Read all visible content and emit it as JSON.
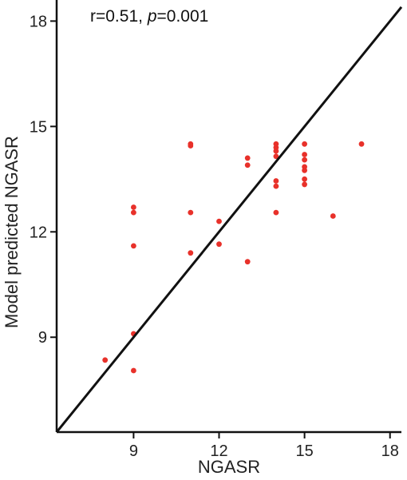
{
  "chart_data": {
    "type": "scatter",
    "title": "",
    "xlabel": "NGASR",
    "ylabel": "Model predicted NGASR",
    "xlim": [
      6.3,
      18.4
    ],
    "ylim": [
      6.3,
      18.6
    ],
    "xticks": [
      9,
      12,
      15,
      18
    ],
    "yticks": [
      9,
      12,
      15,
      18
    ],
    "grid": false,
    "annotation": {
      "r_label": "r=0.51, ",
      "p_symbol": "p",
      "p_value": "=0.001"
    },
    "identity_line": {
      "from": [
        6.3,
        6.3
      ],
      "to": [
        18.4,
        18.4
      ]
    },
    "point_color": "#e8312a",
    "line_color": "#111111",
    "points": [
      {
        "x": 8,
        "y": 8.35
      },
      {
        "x": 9,
        "y": 8.05
      },
      {
        "x": 9,
        "y": 9.1
      },
      {
        "x": 9,
        "y": 11.6
      },
      {
        "x": 9,
        "y": 12.55
      },
      {
        "x": 9,
        "y": 12.7
      },
      {
        "x": 11,
        "y": 11.4
      },
      {
        "x": 11,
        "y": 12.55
      },
      {
        "x": 11,
        "y": 14.45
      },
      {
        "x": 11,
        "y": 14.5
      },
      {
        "x": 12,
        "y": 11.65
      },
      {
        "x": 12,
        "y": 12.3
      },
      {
        "x": 13,
        "y": 11.15
      },
      {
        "x": 13,
        "y": 13.9
      },
      {
        "x": 13,
        "y": 14.1
      },
      {
        "x": 14,
        "y": 12.55
      },
      {
        "x": 14,
        "y": 13.3
      },
      {
        "x": 14,
        "y": 13.45
      },
      {
        "x": 14,
        "y": 14.15
      },
      {
        "x": 14,
        "y": 14.3
      },
      {
        "x": 14,
        "y": 14.4
      },
      {
        "x": 14,
        "y": 14.5
      },
      {
        "x": 15,
        "y": 13.35
      },
      {
        "x": 15,
        "y": 13.5
      },
      {
        "x": 15,
        "y": 13.75
      },
      {
        "x": 15,
        "y": 13.85
      },
      {
        "x": 15,
        "y": 14.05
      },
      {
        "x": 15,
        "y": 14.2
      },
      {
        "x": 15,
        "y": 14.5
      },
      {
        "x": 16,
        "y": 12.45
      },
      {
        "x": 17,
        "y": 14.5
      }
    ]
  }
}
